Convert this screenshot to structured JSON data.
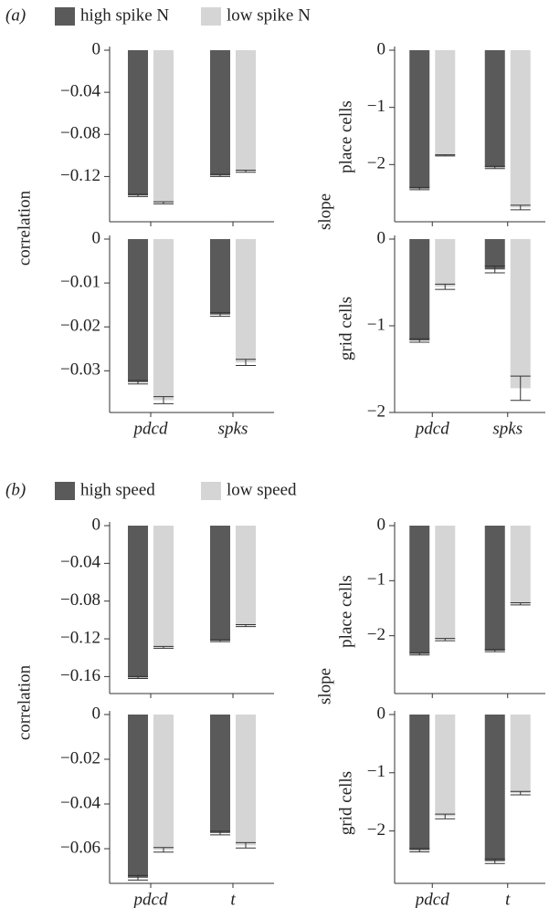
{
  "sections": [
    {
      "label": "(a)",
      "legend": [
        {
          "name": "high spike N",
          "color": "#5a5a5a"
        },
        {
          "name": "low spike N",
          "color": "#d5d5d5"
        }
      ],
      "categories": [
        "pdcd",
        "spks"
      ],
      "ylabels": [
        "correlation",
        "slope"
      ],
      "row_labels": [
        "place cells",
        "grid cells"
      ]
    },
    {
      "label": "(b)",
      "legend": [
        {
          "name": "high speed",
          "color": "#5a5a5a"
        },
        {
          "name": "low speed",
          "color": "#d5d5d5"
        }
      ],
      "categories": [
        "pdcd",
        "t"
      ],
      "ylabels": [
        "correlation",
        "slope"
      ],
      "row_labels": [
        "place cells",
        "grid cells"
      ]
    }
  ],
  "chart_data": [
    {
      "type": "bar",
      "ylim": [
        -0.163,
        0
      ],
      "yticks": [
        0,
        {
          "value": -0.04,
          "label": "−0.04"
        },
        {
          "value": -0.08,
          "label": "−0.08"
        },
        {
          "value": -0.12,
          "label": "−0.12"
        }
      ],
      "series": [
        {
          "values": [
            -0.138,
            -0.119
          ],
          "errors": [
            0.001,
            0.001
          ]
        },
        {
          "values": [
            -0.145,
            -0.115
          ],
          "errors": [
            0.001,
            0.001
          ]
        }
      ]
    },
    {
      "type": "bar",
      "ylim": [
        -0.0395,
        0
      ],
      "yticks": [
        0,
        {
          "value": -0.01,
          "label": "−0.01"
        },
        {
          "value": -0.02,
          "label": "−0.02"
        },
        {
          "value": -0.03,
          "label": "−0.03"
        }
      ],
      "series": [
        {
          "values": [
            -0.0326,
            -0.0172
          ],
          "errors": [
            0.0004,
            0.0004
          ]
        },
        {
          "values": [
            -0.0367,
            -0.0281
          ],
          "errors": [
            0.0008,
            0.0007
          ]
        }
      ]
    },
    {
      "type": "bar",
      "ylim": [
        -3,
        0
      ],
      "yticks": [
        0,
        {
          "value": -1,
          "label": "−1"
        },
        {
          "value": -2,
          "label": "−2"
        }
      ],
      "series": [
        {
          "values": [
            -2.42,
            -2.05
          ],
          "errors": [
            0.02,
            0.02
          ]
        },
        {
          "values": [
            -1.84,
            -2.75
          ],
          "errors": [
            0.01,
            0.04
          ]
        }
      ]
    },
    {
      "type": "bar",
      "ylim": [
        -2,
        0
      ],
      "yticks": [
        0,
        {
          "value": -1,
          "label": "−1"
        },
        {
          "value": -2,
          "label": "−2"
        }
      ],
      "series": [
        {
          "values": [
            -1.17,
            -0.35
          ],
          "errors": [
            0.02,
            0.04
          ]
        },
        {
          "values": [
            -0.55,
            -1.72
          ],
          "errors": [
            0.03,
            0.14
          ]
        }
      ]
    },
    {
      "type": "bar",
      "ylim": [
        -0.178,
        0
      ],
      "yticks": [
        0,
        {
          "value": -0.04,
          "label": "−0.04"
        },
        {
          "value": -0.08,
          "label": "−0.08"
        },
        {
          "value": -0.12,
          "label": "−0.12"
        },
        {
          "value": -0.16,
          "label": "−0.16"
        }
      ],
      "series": [
        {
          "values": [
            -0.161,
            -0.122
          ],
          "errors": [
            0.001,
            0.001
          ]
        },
        {
          "values": [
            -0.129,
            -0.106
          ],
          "errors": [
            0.001,
            0.001
          ]
        }
      ]
    },
    {
      "type": "bar",
      "ylim": [
        -0.0755,
        0
      ],
      "yticks": [
        0,
        {
          "value": -0.02,
          "label": "−0.02"
        },
        {
          "value": -0.04,
          "label": "−0.04"
        },
        {
          "value": -0.06,
          "label": "−0.06"
        }
      ],
      "series": [
        {
          "values": [
            -0.073,
            -0.053
          ],
          "errors": [
            0.001,
            0.0008
          ]
        },
        {
          "values": [
            -0.0605,
            -0.0585
          ],
          "errors": [
            0.001,
            0.0012
          ]
        }
      ]
    },
    {
      "type": "bar",
      "ylim": [
        -3.05,
        0
      ],
      "yticks": [
        0,
        {
          "value": -1,
          "label": "−1"
        },
        {
          "value": -2,
          "label": "−2"
        }
      ],
      "series": [
        {
          "values": [
            -2.33,
            -2.27
          ],
          "errors": [
            0.02,
            0.02
          ]
        },
        {
          "values": [
            -2.07,
            -1.42
          ],
          "errors": [
            0.02,
            0.02
          ]
        }
      ]
    },
    {
      "type": "bar",
      "ylim": [
        -2.9,
        0
      ],
      "yticks": [
        0,
        {
          "value": -1,
          "label": "−1"
        },
        {
          "value": -2,
          "label": "−2"
        }
      ],
      "series": [
        {
          "values": [
            -2.33,
            -2.52
          ],
          "errors": [
            0.03,
            0.04
          ]
        },
        {
          "values": [
            -1.75,
            -1.35
          ],
          "errors": [
            0.04,
            0.03
          ]
        }
      ]
    }
  ]
}
